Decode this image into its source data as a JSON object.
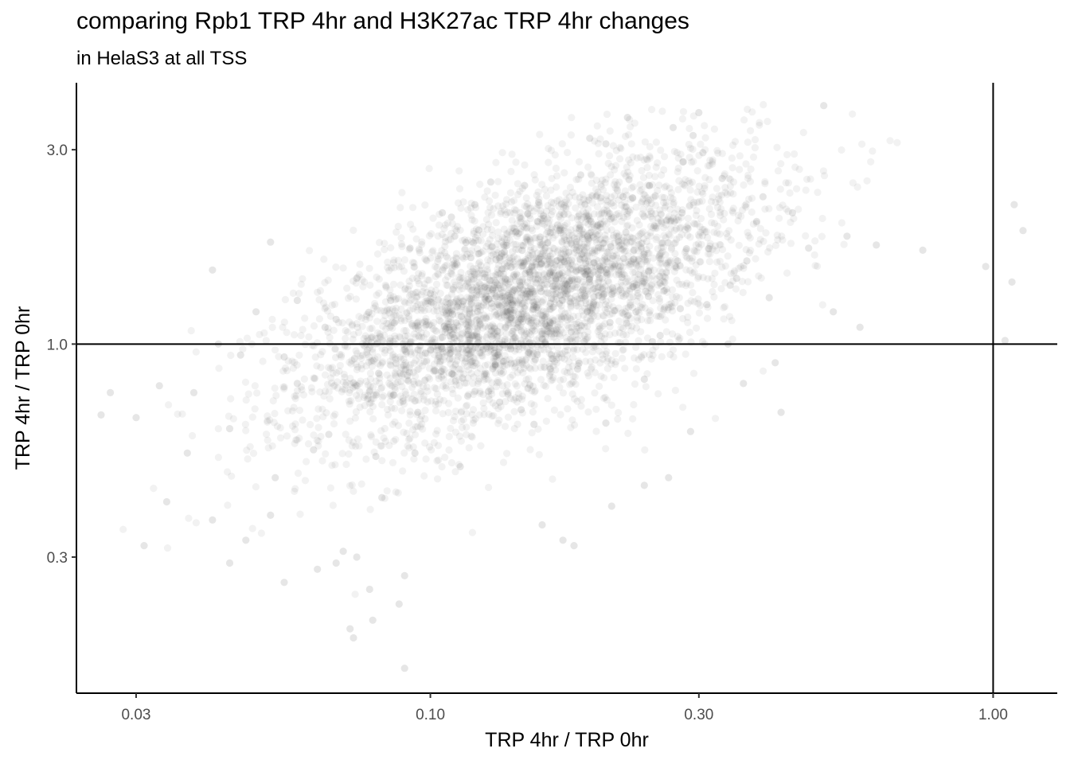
{
  "chart_data": {
    "type": "scatter",
    "title": "comparing Rpb1 TRP 4hr and H3K27ac TRP 4hr changes",
    "subtitle": "in HelaS3 at all TSS",
    "xlabel": "TRP 4hr / TRP 0hr",
    "ylabel": "TRP 4hr / TRP 0hr",
    "x_scale": "log10",
    "y_scale": "log10",
    "xlim": [
      0.0235,
      1.3
    ],
    "ylim": [
      0.139,
      4.38
    ],
    "x_ticks": [
      0.03,
      0.1,
      0.3,
      1.0
    ],
    "x_tick_labels": [
      "0.03",
      "0.10",
      "0.30",
      "1.00"
    ],
    "y_ticks": [
      0.3,
      1.0,
      3.0
    ],
    "y_tick_labels": [
      "0.3",
      "1.0",
      "3.0"
    ],
    "reference_lines": {
      "vertical_x": 1.0,
      "horizontal_y": 1.0
    },
    "point_color": "#4d4d4d",
    "point_alpha": 0.07,
    "grid": false,
    "series": [
      {
        "summary": {
          "approx_points": 4000,
          "x_median": 0.15,
          "y_median": 1.3,
          "x_range": [
            0.027,
            1.1
          ],
          "y_range": [
            0.155,
            3.9
          ],
          "trend": "positive correlation"
        },
        "points": [
          [
            0.027,
            0.76
          ],
          [
            0.026,
            0.67
          ],
          [
            0.03,
            0.66
          ],
          [
            0.033,
            0.79
          ],
          [
            0.031,
            0.32
          ],
          [
            0.034,
            0.41
          ],
          [
            0.037,
            0.54
          ],
          [
            0.038,
            0.76
          ],
          [
            0.041,
            1.52
          ],
          [
            0.042,
            1.0
          ],
          [
            0.041,
            0.37
          ],
          [
            0.044,
            0.62
          ],
          [
            0.046,
            0.94
          ],
          [
            0.049,
            1.2
          ],
          [
            0.052,
            1.78
          ],
          [
            0.053,
            0.47
          ],
          [
            0.055,
            0.93
          ],
          [
            0.055,
            0.26
          ],
          [
            0.058,
            1.28
          ],
          [
            0.062,
            0.55
          ],
          [
            0.065,
            1.1
          ],
          [
            0.07,
            0.31
          ],
          [
            0.072,
            0.2
          ],
          [
            0.073,
            0.19
          ],
          [
            0.074,
            1.45
          ],
          [
            0.078,
            0.25
          ],
          [
            0.08,
            0.53
          ],
          [
            0.082,
            0.42
          ],
          [
            0.085,
            1.28
          ],
          [
            0.088,
            0.23
          ],
          [
            0.09,
            0.16
          ],
          [
            0.092,
            1.72
          ],
          [
            0.095,
            0.68
          ],
          [
            0.1,
            1.33
          ],
          [
            0.102,
            0.86
          ],
          [
            0.105,
            2.1
          ],
          [
            0.11,
            1.1
          ],
          [
            0.113,
            0.5
          ],
          [
            0.118,
            1.63
          ],
          [
            0.12,
            2.2
          ],
          [
            0.125,
            1.38
          ],
          [
            0.13,
            0.95
          ],
          [
            0.135,
            1.75
          ],
          [
            0.14,
            1.25
          ],
          [
            0.145,
            0.69
          ],
          [
            0.15,
            1.5
          ],
          [
            0.155,
            2.0
          ],
          [
            0.16,
            1.12
          ],
          [
            0.165,
            0.92
          ],
          [
            0.17,
            1.9
          ],
          [
            0.175,
            1.4
          ],
          [
            0.18,
            0.32
          ],
          [
            0.185,
            2.6
          ],
          [
            0.19,
            1.2
          ],
          [
            0.2,
            1.55
          ],
          [
            0.205,
            3.1
          ],
          [
            0.21,
            0.4
          ],
          [
            0.22,
            2.3
          ],
          [
            0.23,
            1.7
          ],
          [
            0.24,
            0.82
          ],
          [
            0.25,
            1.95
          ],
          [
            0.26,
            1.35
          ],
          [
            0.27,
            3.4
          ],
          [
            0.275,
            1.6
          ],
          [
            0.28,
            2.1
          ],
          [
            0.29,
            0.61
          ],
          [
            0.3,
            3.7
          ],
          [
            0.31,
            1.25
          ],
          [
            0.33,
            2.55
          ],
          [
            0.35,
            1.45
          ],
          [
            0.36,
            0.8
          ],
          [
            0.38,
            2.0
          ],
          [
            0.4,
            1.3
          ],
          [
            0.42,
            0.68
          ],
          [
            0.44,
            2.1
          ],
          [
            0.47,
            1.72
          ],
          [
            0.5,
            3.85
          ],
          [
            0.52,
            1.2
          ],
          [
            0.55,
            1.84
          ],
          [
            0.58,
            1.1
          ],
          [
            0.62,
            1.75
          ],
          [
            0.75,
            1.7
          ],
          [
            0.97,
            1.55
          ],
          [
            1.05,
            1.02
          ],
          [
            1.08,
            1.42
          ],
          [
            1.09,
            2.2
          ],
          [
            1.13,
            1.9
          ],
          [
            0.063,
            0.28
          ],
          [
            0.079,
            0.21
          ],
          [
            0.066,
            0.6
          ],
          [
            0.086,
            0.75
          ],
          [
            0.098,
            0.95
          ],
          [
            0.068,
            1.15
          ],
          [
            0.058,
            0.8
          ],
          [
            0.109,
            2.05
          ],
          [
            0.128,
            2.5
          ],
          [
            0.147,
            2.45
          ],
          [
            0.158,
            0.36
          ],
          [
            0.172,
            0.33
          ],
          [
            0.24,
            0.45
          ],
          [
            0.265,
            0.47
          ],
          [
            0.281,
            2.8
          ],
          [
            0.293,
            3.25
          ],
          [
            0.305,
            2.95
          ],
          [
            0.224,
            3.6
          ],
          [
            0.192,
            3.2
          ],
          [
            0.205,
            0.64
          ],
          [
            0.232,
            1.2
          ],
          [
            0.245,
            2.45
          ],
          [
            0.256,
            1.05
          ],
          [
            0.338,
            1.0
          ],
          [
            0.365,
            1.6
          ],
          [
            0.39,
            2.3
          ],
          [
            0.41,
            0.9
          ],
          [
            0.052,
            0.38
          ],
          [
            0.047,
            0.33
          ],
          [
            0.044,
            0.29
          ],
          [
            0.068,
            0.29
          ],
          [
            0.074,
            0.3
          ],
          [
            0.09,
            0.27
          ]
        ]
      }
    ]
  }
}
